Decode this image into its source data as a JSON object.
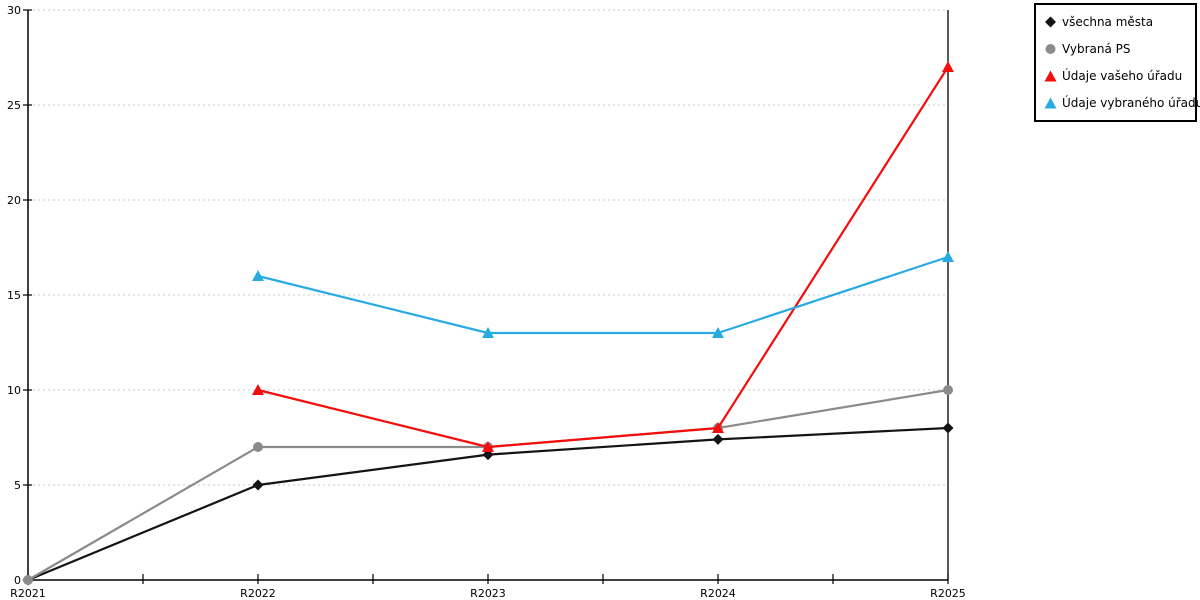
{
  "chart_data": {
    "type": "line",
    "title": "",
    "xlabel": "",
    "ylabel": "",
    "categories": [
      "R2021",
      "R2022",
      "R2023",
      "R2024",
      "R2025"
    ],
    "series": [
      {
        "name": "všechna města",
        "color": "#141414",
        "marker": "diamond",
        "values": [
          0,
          5,
          6.6,
          7.4,
          8
        ]
      },
      {
        "name": "Vybraná PS",
        "color": "#8b8b8b",
        "marker": "circle",
        "values": [
          0,
          7,
          7,
          8,
          10
        ]
      },
      {
        "name": "Údaje vašeho úřadu",
        "color": "#f50d0d",
        "marker": "triangle",
        "values": [
          null,
          10,
          7,
          8,
          27
        ]
      },
      {
        "name": "Údaje vybraného úřadu",
        "color": "#29abe2",
        "marker": "triangle",
        "values": [
          null,
          16,
          13,
          13,
          17
        ]
      }
    ],
    "ylim": [
      0,
      30
    ],
    "ytick_step": 5,
    "ytick_labels": [
      "0",
      "5",
      "10",
      "15",
      "20",
      "25",
      "30"
    ],
    "grid": "horizontal-dashed",
    "gridline_color": "#c9c9c9",
    "axis_color": "#000000",
    "legend_position": "top-right",
    "legend_border_color": "#000000"
  }
}
